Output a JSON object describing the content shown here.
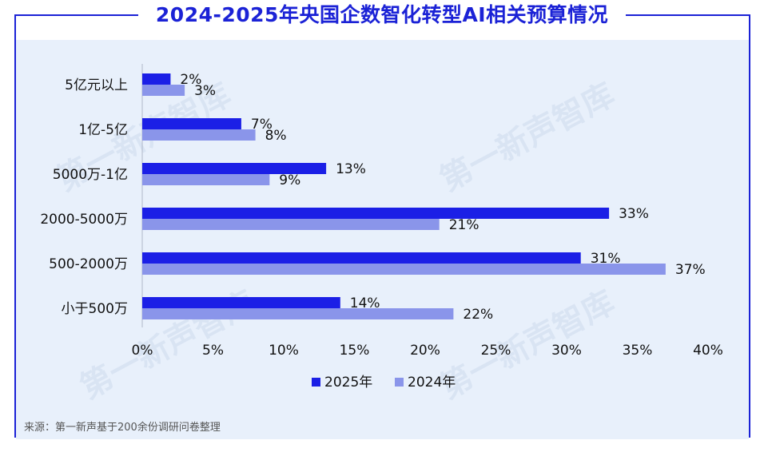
{
  "title": "2024-2025年央国企数智化转型AI相关预算情况",
  "source": "来源：第一新声基于200余份调研问卷整理",
  "colors": {
    "s2025": "#1b1fe6",
    "s2024": "#8a95ea",
    "accent": "#1b22d6"
  },
  "chart_data": {
    "type": "bar",
    "orientation": "horizontal",
    "categories": [
      "5亿元以上",
      "1亿-5亿",
      "5000万-1亿",
      "2000-5000万",
      "500-2000万",
      "小于500万"
    ],
    "series": [
      {
        "name": "2025年",
        "values": [
          2,
          7,
          13,
          33,
          31,
          14
        ],
        "labels": [
          "2%",
          "7%",
          "13%",
          "33%",
          "31%",
          "14%"
        ]
      },
      {
        "name": "2024年",
        "values": [
          3,
          8,
          9,
          21,
          37,
          22
        ],
        "labels": [
          "3%",
          "8%",
          "9%",
          "21%",
          "37%",
          "22%"
        ]
      }
    ],
    "xlim": [
      0,
      40
    ],
    "xticks": [
      "0%",
      "5%",
      "10%",
      "15%",
      "20%",
      "25%",
      "30%",
      "35%",
      "40%"
    ],
    "legend": "bottom-center",
    "grid": false
  }
}
